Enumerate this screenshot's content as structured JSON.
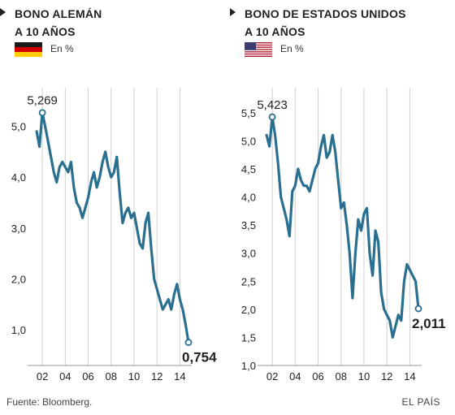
{
  "colors": {
    "line": "#2a6f8f",
    "grid": "#d0d0d0",
    "text": "#222222",
    "marker_fill": "#ffffff"
  },
  "footer": {
    "source": "Fuente: Bloomberg.",
    "brand": "EL PAÍS"
  },
  "chart_data": [
    {
      "type": "line",
      "title": "BONO ALEMÁN\nA 10 AÑOS",
      "flag_icon": "germany-flag-icon",
      "unit": "En %",
      "x_ticks": [
        "02",
        "04",
        "06",
        "08",
        "10",
        "12",
        "14"
      ],
      "y_ticks": [
        "1,0",
        "2,0",
        "3,0",
        "4,0",
        "5,0"
      ],
      "ylim": [
        0.3,
        5.6
      ],
      "xlim": [
        2001.0,
        2014.75
      ],
      "grid": "vertical",
      "start_label": "5,269",
      "end_label": "0,754",
      "series": [
        {
          "x": [
            2001.5,
            2001.75,
            2002.0,
            2002.25,
            2002.5,
            2002.75,
            2003.0,
            2003.25,
            2003.5,
            2003.75,
            2004.0,
            2004.25,
            2004.5,
            2004.75,
            2005.0,
            2005.25,
            2005.5,
            2005.75,
            2006.0,
            2006.25,
            2006.5,
            2006.75,
            2007.0,
            2007.25,
            2007.5,
            2007.75,
            2008.0,
            2008.25,
            2008.5,
            2008.75,
            2009.0,
            2009.25,
            2009.5,
            2009.75,
            2010.0,
            2010.25,
            2010.5,
            2010.75,
            2011.0,
            2011.25,
            2011.5,
            2011.75,
            2012.0,
            2012.25,
            2012.5,
            2012.75,
            2013.0,
            2013.25,
            2013.5,
            2013.75,
            2014.0,
            2014.25,
            2014.5,
            2014.75
          ],
          "values": [
            4.9,
            4.6,
            5.269,
            5.0,
            4.7,
            4.4,
            4.1,
            3.9,
            4.2,
            4.3,
            4.2,
            4.1,
            4.3,
            3.8,
            3.5,
            3.4,
            3.2,
            3.4,
            3.6,
            3.9,
            4.1,
            3.8,
            4.0,
            4.3,
            4.5,
            4.2,
            4.0,
            4.1,
            4.4,
            3.7,
            3.1,
            3.3,
            3.4,
            3.2,
            3.3,
            3.0,
            2.7,
            2.6,
            3.1,
            3.3,
            2.6,
            2.0,
            1.8,
            1.6,
            1.4,
            1.5,
            1.6,
            1.4,
            1.7,
            1.9,
            1.6,
            1.4,
            1.1,
            0.754
          ]
        }
      ]
    },
    {
      "type": "line",
      "title": "BONO DE ESTADOS UNIDOS\nA 10 AÑOS",
      "flag_icon": "usa-flag-icon",
      "unit": "En %",
      "x_ticks": [
        "02",
        "04",
        "06",
        "08",
        "10",
        "12",
        "14"
      ],
      "y_ticks": [
        "1,0",
        "1,5",
        "2,0",
        "2,5",
        "3,0",
        "3,5",
        "4,0",
        "4,5",
        "5,0",
        "5,5"
      ],
      "ylim": [
        1.0,
        5.8
      ],
      "xlim": [
        2001.0,
        2014.75
      ],
      "grid": "vertical",
      "start_label": "5,423",
      "end_label": "2,011",
      "series": [
        {
          "x": [
            2001.5,
            2001.75,
            2002.0,
            2002.25,
            2002.5,
            2002.75,
            2003.0,
            2003.25,
            2003.5,
            2003.75,
            2004.0,
            2004.25,
            2004.5,
            2004.75,
            2005.0,
            2005.25,
            2005.5,
            2005.75,
            2006.0,
            2006.25,
            2006.5,
            2006.75,
            2007.0,
            2007.25,
            2007.5,
            2007.75,
            2008.0,
            2008.25,
            2008.5,
            2008.75,
            2009.0,
            2009.25,
            2009.5,
            2009.75,
            2010.0,
            2010.25,
            2010.5,
            2010.75,
            2011.0,
            2011.25,
            2011.5,
            2011.75,
            2012.0,
            2012.25,
            2012.5,
            2012.75,
            2013.0,
            2013.25,
            2013.5,
            2013.75,
            2014.0,
            2014.25,
            2014.5,
            2014.75
          ],
          "values": [
            5.1,
            4.9,
            5.423,
            5.1,
            4.6,
            4.0,
            3.8,
            3.6,
            3.3,
            4.1,
            4.2,
            4.5,
            4.3,
            4.2,
            4.2,
            4.1,
            4.3,
            4.5,
            4.6,
            4.9,
            5.1,
            4.7,
            4.8,
            5.1,
            4.8,
            4.3,
            3.8,
            3.9,
            3.5,
            3.0,
            2.2,
            3.0,
            3.6,
            3.4,
            3.7,
            3.8,
            3.0,
            2.6,
            3.4,
            3.2,
            2.3,
            2.0,
            1.9,
            1.8,
            1.5,
            1.7,
            1.9,
            1.8,
            2.5,
            2.8,
            2.7,
            2.6,
            2.5,
            2.011
          ]
        }
      ]
    }
  ]
}
